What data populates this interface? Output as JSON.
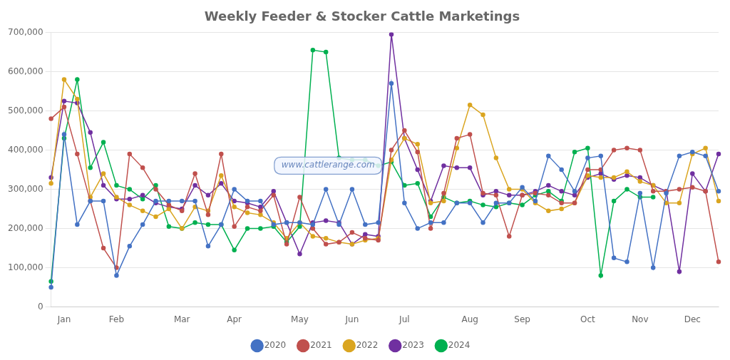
{
  "chart_data": {
    "type": "line",
    "title": "Weekly Feeder & Stocker Cattle Marketings",
    "annotations": [
      "www.cattlerange.com"
    ],
    "categories": [
      null,
      "Jan",
      null,
      null,
      null,
      "Feb",
      null,
      null,
      null,
      null,
      "Mar",
      null,
      null,
      null,
      "Apr",
      null,
      null,
      null,
      null,
      "May",
      null,
      null,
      null,
      "Jun",
      null,
      null,
      null,
      "Jul",
      null,
      null,
      null,
      null,
      "Aug",
      null,
      null,
      null,
      "Sep",
      null,
      null,
      null,
      null,
      "Oct",
      null,
      null,
      null,
      "Nov",
      null,
      null,
      null,
      "Dec",
      null,
      null
    ],
    "series": [
      {
        "name": "2020",
        "color": "#4472c4",
        "values": [
          50000,
          440000,
          210000,
          270000,
          270000,
          80000,
          155000,
          210000,
          270000,
          270000,
          270000,
          270000,
          155000,
          210000,
          300000,
          270000,
          270000,
          210000,
          215000,
          215000,
          210000,
          300000,
          210000,
          300000,
          210000,
          215000,
          570000,
          265000,
          200000,
          215000,
          215000,
          265000,
          265000,
          215000,
          265000,
          265000,
          305000,
          270000,
          385000,
          350000,
          295000,
          380000,
          385000,
          125000,
          115000,
          290000,
          100000,
          290000,
          385000,
          395000,
          385000,
          295000
        ]
      },
      {
        "name": "2021",
        "color": "#c0504d",
        "values": [
          480000,
          510000,
          390000,
          270000,
          150000,
          100000,
          390000,
          355000,
          300000,
          260000,
          245000,
          340000,
          235000,
          390000,
          205000,
          255000,
          245000,
          285000,
          160000,
          280000,
          200000,
          160000,
          165000,
          190000,
          175000,
          170000,
          400000,
          450000,
          395000,
          200000,
          290000,
          430000,
          440000,
          290000,
          285000,
          180000,
          285000,
          290000,
          285000,
          265000,
          265000,
          350000,
          350000,
          400000,
          405000,
          400000,
          295000,
          295000,
          300000,
          305000,
          295000,
          115000
        ]
      },
      {
        "name": "2022",
        "color": "#daa520",
        "values": [
          315000,
          580000,
          530000,
          280000,
          340000,
          280000,
          260000,
          245000,
          230000,
          250000,
          200000,
          255000,
          245000,
          335000,
          255000,
          240000,
          235000,
          215000,
          175000,
          215000,
          180000,
          175000,
          165000,
          160000,
          170000,
          175000,
          375000,
          430000,
          415000,
          265000,
          270000,
          405000,
          515000,
          490000,
          380000,
          300000,
          300000,
          265000,
          245000,
          250000,
          265000,
          335000,
          330000,
          330000,
          345000,
          320000,
          310000,
          265000,
          265000,
          390000,
          405000,
          270000
        ]
      },
      {
        "name": "2023",
        "color": "#7030a0",
        "values": [
          330000,
          525000,
          520000,
          445000,
          310000,
          275000,
          275000,
          285000,
          265000,
          255000,
          250000,
          310000,
          285000,
          315000,
          270000,
          265000,
          255000,
          295000,
          215000,
          135000,
          215000,
          220000,
          215000,
          160000,
          185000,
          180000,
          695000,
          430000,
          350000,
          270000,
          360000,
          355000,
          355000,
          285000,
          295000,
          285000,
          285000,
          295000,
          310000,
          295000,
          285000,
          330000,
          340000,
          325000,
          335000,
          330000,
          310000,
          295000,
          90000,
          340000,
          295000,
          390000
        ]
      },
      {
        "name": "2024",
        "color": "#00b050",
        "values": [
          65000,
          430000,
          580000,
          355000,
          420000,
          310000,
          300000,
          275000,
          310000,
          205000,
          200000,
          215000,
          210000,
          210000,
          145000,
          200000,
          200000,
          205000,
          165000,
          205000,
          655000,
          650000,
          380000,
          375000,
          375000,
          360000,
          370000,
          310000,
          315000,
          230000,
          280000,
          265000,
          270000,
          260000,
          255000,
          265000,
          260000,
          285000,
          295000,
          270000,
          395000,
          405000,
          80000,
          270000,
          300000,
          280000,
          280000,
          null,
          null,
          null,
          null,
          null
        ]
      }
    ],
    "ylim": [
      0,
      700000
    ],
    "yticks": [
      0,
      {
        "value": 100000,
        "label": "100,000"
      },
      {
        "value": 200000,
        "label": "200,000"
      },
      {
        "value": 300000,
        "label": "300,000"
      },
      {
        "value": 400000,
        "label": "400,000"
      },
      {
        "value": 500000,
        "label": "500,000"
      },
      {
        "value": 600000,
        "label": "600,000"
      },
      {
        "value": 700000,
        "label": "700,000"
      }
    ],
    "grid": true,
    "legend": "bottom",
    "marker": "circle"
  }
}
